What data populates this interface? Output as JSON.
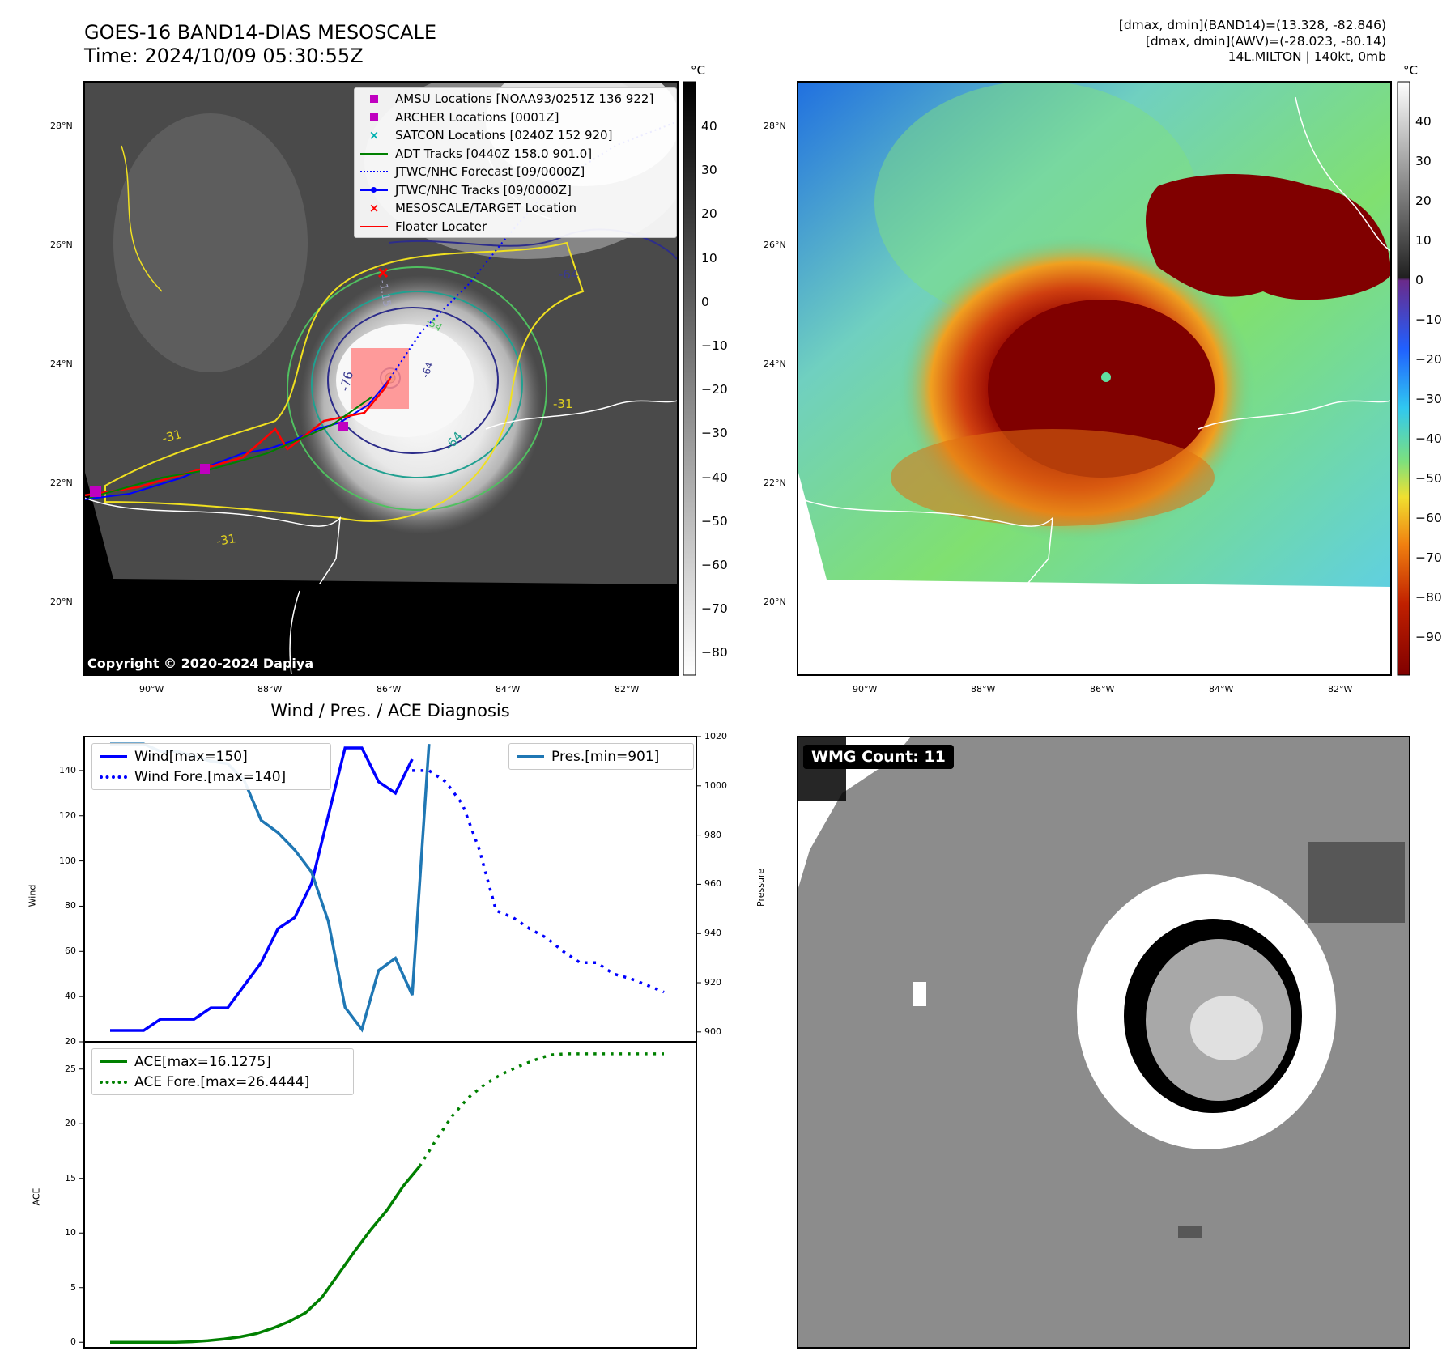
{
  "header": {
    "left_line1": "GOES-16 BAND14-DIAS MESOSCALE",
    "left_line2": "Time: 2024/10/09 05:30:55Z",
    "right_line1": "[dmax, dmin](BAND14)=(13.328, -82.846)",
    "right_line2": "[dmax, dmin](AWV)=(-28.023, -80.14)",
    "right_line3": "14L.MILTON | 140kt, 0mb"
  },
  "maps": {
    "lat_labels": [
      "28°N",
      "26°N",
      "24°N",
      "22°N",
      "20°N"
    ],
    "lon_labels": [
      "90°W",
      "88°W",
      "86°W",
      "84°W",
      "82°W"
    ],
    "copyright": "Copyright © 2020-2024 Dapiya",
    "contour_labels": [
      "-64",
      "-76",
      "-64",
      "-54",
      "-31",
      "-31",
      "-31",
      "-1.15",
      "-64"
    ],
    "left_colorbar": {
      "unit": "°C",
      "ticks": [
        "40",
        "30",
        "20",
        "10",
        "0",
        "−10",
        "−20",
        "−30",
        "−40",
        "−50",
        "−60",
        "−70",
        "−80"
      ]
    },
    "right_colorbar": {
      "unit": "°C",
      "ticks": [
        "40",
        "30",
        "20",
        "10",
        "0",
        "−10",
        "−20",
        "−30",
        "−40",
        "−50",
        "−60",
        "−70",
        "−80",
        "−90"
      ]
    },
    "legend": [
      {
        "label": "AMSU Locations [NOAA93/0251Z 136 922]",
        "color": "#c000c0",
        "marker": "square"
      },
      {
        "label": "ARCHER Locations [0001Z]",
        "color": "#c000c0",
        "marker": "square"
      },
      {
        "label": "SATCON Locations [0240Z 152 920]",
        "color": "#00b0b0",
        "marker": "x"
      },
      {
        "label": "ADT Tracks [0440Z 158.0 901.0]",
        "color": "#008000",
        "marker": "line"
      },
      {
        "label": "JTWC/NHC Forecast [09/0000Z]",
        "color": "#0000ff",
        "marker": "dotted"
      },
      {
        "label": "JTWC/NHC Tracks [09/0000Z]",
        "color": "#0000ff",
        "marker": "line-dot"
      },
      {
        "label": "MESOSCALE/TARGET Location",
        "color": "#ff0000",
        "marker": "x"
      },
      {
        "label": "Floater Locater",
        "color": "#ff0000",
        "marker": "line"
      }
    ]
  },
  "chart_data": [
    {
      "type": "line",
      "title": "Wind / Pres. / ACE Diagnosis",
      "ylabel": "Wind",
      "y2label": "Pressure",
      "ylim": [
        20,
        155
      ],
      "y2lim": [
        896,
        1020
      ],
      "yticks": [
        "20",
        "40",
        "60",
        "80",
        "100",
        "120",
        "140"
      ],
      "y2ticks": [
        "900",
        "920",
        "940",
        "960",
        "980",
        "1000",
        "1020"
      ],
      "legend_left": [
        "Wind[max=150]",
        "Wind Fore.[max=140]"
      ],
      "legend_right": "Pres.[min=901]",
      "series": [
        {
          "name": "Wind[max=150]",
          "axis": "left",
          "color": "#0000ff",
          "style": "solid",
          "x": [
            0,
            1,
            2,
            3,
            4,
            5,
            6,
            7,
            8,
            9,
            10,
            11,
            12,
            13,
            14,
            15,
            16,
            17,
            18
          ],
          "values": [
            25,
            25,
            25,
            30,
            30,
            30,
            35,
            35,
            45,
            55,
            70,
            75,
            90,
            120,
            150,
            150,
            135,
            130,
            145
          ]
        },
        {
          "name": "Wind Fore.[max=140]",
          "axis": "left",
          "color": "#0000ff",
          "style": "dotted",
          "x": [
            18,
            19,
            20,
            21,
            22,
            23,
            24,
            25,
            26,
            27,
            28,
            29,
            30,
            31,
            32,
            33
          ],
          "values": [
            140,
            140,
            135,
            125,
            105,
            78,
            75,
            70,
            66,
            60,
            55,
            55,
            50,
            48,
            45,
            42
          ]
        },
        {
          "name": "Pres.[min=901]",
          "axis": "right",
          "color": "#1f77b4",
          "style": "solid",
          "x": [
            0,
            1,
            2,
            3,
            4,
            5,
            6,
            7,
            8,
            9,
            10,
            11,
            12,
            13,
            14,
            15,
            16,
            17,
            18,
            19
          ],
          "values": [
            1017,
            1017,
            1017,
            1014,
            1014,
            1012,
            1010,
            1009,
            1002,
            986,
            981,
            974,
            965,
            945,
            910,
            901,
            925,
            930,
            915,
            1017
          ]
        }
      ]
    },
    {
      "type": "line",
      "ylabel": "ACE",
      "ylim": [
        -0.5,
        27.5
      ],
      "yticks": [
        "0",
        "5",
        "10",
        "15",
        "20",
        "25"
      ],
      "legend": [
        "ACE[max=16.1275]",
        "ACE Fore.[max=26.4444]"
      ],
      "series": [
        {
          "name": "ACE[max=16.1275]",
          "color": "#008000",
          "style": "solid",
          "x": [
            0,
            1,
            2,
            3,
            4,
            5,
            6,
            7,
            8,
            9,
            10,
            11,
            12,
            13,
            14,
            15,
            16,
            17,
            18,
            19
          ],
          "values": [
            0.0,
            0.0,
            0.0,
            0.0,
            0.0,
            0.05,
            0.15,
            0.3,
            0.5,
            0.8,
            1.3,
            1.9,
            2.7,
            4.1,
            6.2,
            8.3,
            10.3,
            12.1,
            14.3,
            16.1
          ]
        },
        {
          "name": "ACE Fore.[max=26.4444]",
          "color": "#008000",
          "style": "dotted",
          "x": [
            19,
            20,
            21,
            22,
            23,
            24,
            25,
            26,
            27,
            28,
            29,
            30,
            31,
            32,
            33,
            34
          ],
          "values": [
            16.1,
            18.5,
            20.7,
            22.4,
            23.6,
            24.5,
            25.2,
            25.8,
            26.3,
            26.4,
            26.4,
            26.4,
            26.4,
            26.4,
            26.4,
            26.4
          ]
        }
      ]
    }
  ],
  "wmg": {
    "badge": "WMG Count: 11"
  }
}
